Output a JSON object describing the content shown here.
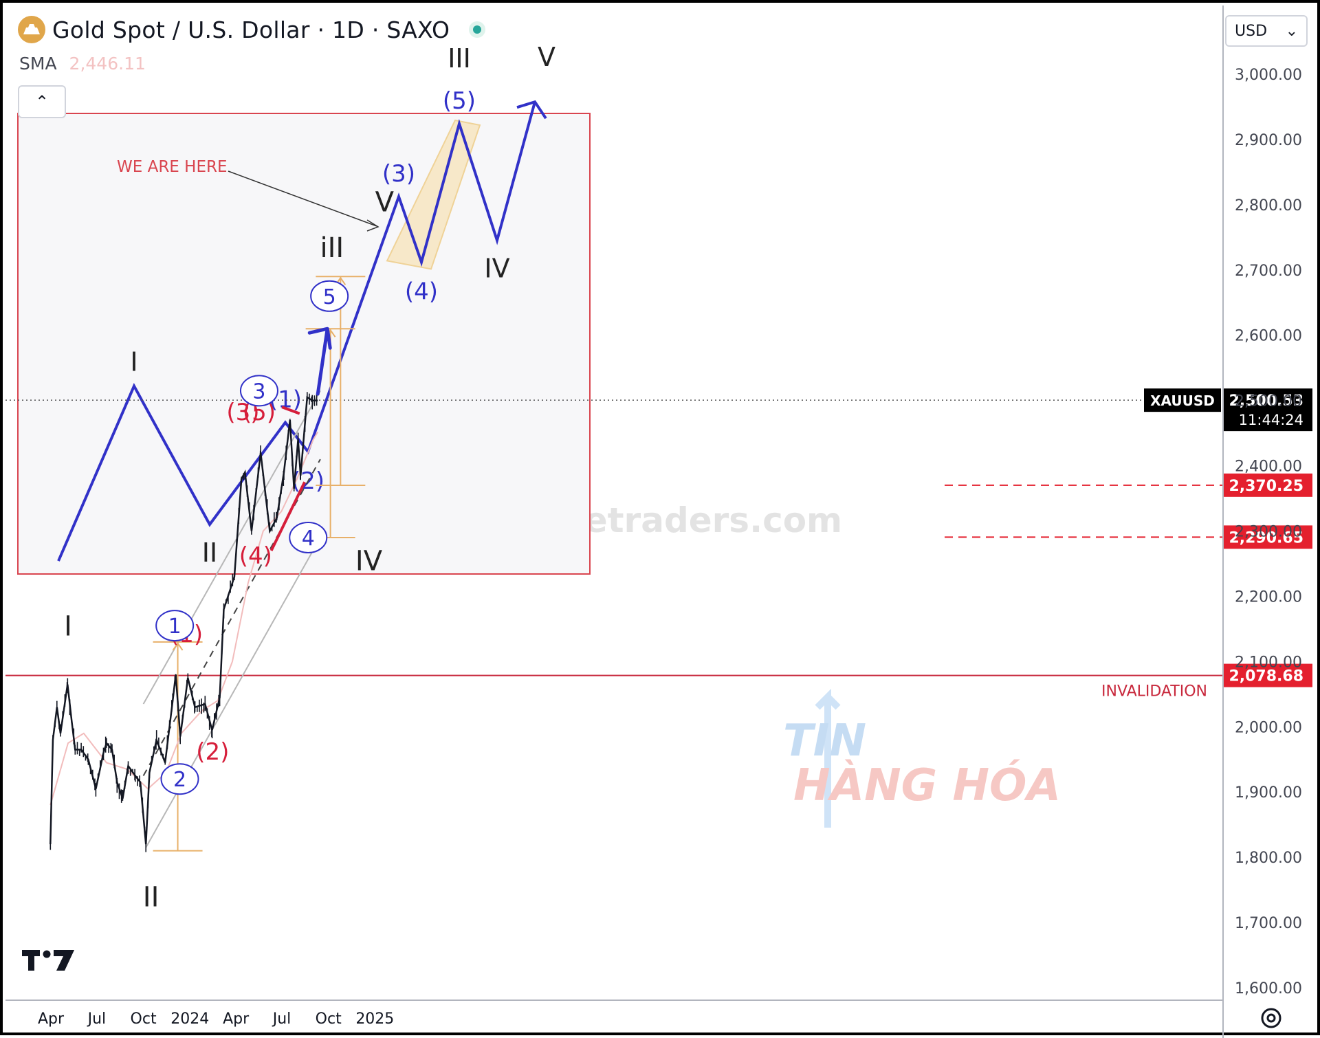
{
  "header": {
    "title": "Gold Spot / U.S. Dollar · 1D · SAXO",
    "indicator": {
      "name": "SMA",
      "value": "2,446.11"
    },
    "collapse_glyph": "⌃",
    "currency": "USD",
    "currency_caret": "⌄"
  },
  "icons": [
    "gold-logo-icon",
    "live-status-icon",
    "collapse-chevron-icon",
    "currency-dropdown-icon",
    "tradingview-logo-icon",
    "settings-gear-icon"
  ],
  "colors": {
    "price": "#131722",
    "sma": "#f2bcbc",
    "blue_wave": "#3131c8",
    "red_wave": "#d61e3a",
    "invalidation": "#c8283c",
    "target": "#e8b069",
    "price_tag_bg": "#000000",
    "level_tag_bg": "#e4202e"
  },
  "chart_data": {
    "type": "line",
    "symbol": "XAUUSD",
    "interval": "1D",
    "x_ticks": [
      "Apr",
      "Jul",
      "Oct",
      "2024",
      "Apr",
      "Jul",
      "Oct",
      "2025"
    ],
    "y_ticks": [
      "3,000.00",
      "2,900.00",
      "2,800.00",
      "2,700.00",
      "2,600.00",
      "2,500.00",
      "2,400.00",
      "2,300.00",
      "2,200.00",
      "2,100.00",
      "2,000.00",
      "1,900.00",
      "1,800.00",
      "1,700.00",
      "1,600.00"
    ],
    "ylim": [
      1600,
      3000
    ],
    "grid": false,
    "current_price": {
      "label": "XAUUSD",
      "value": "2,500.53",
      "countdown": "11:44:24"
    },
    "levels": [
      {
        "value": "2,370.25",
        "style": "dashed"
      },
      {
        "value": "2,290.65",
        "style": "dashed"
      },
      {
        "value": "2,078.68",
        "style": "solid",
        "label": "INVALIDATION"
      }
    ],
    "price_path": [
      [
        "2023-03-31",
        1820
      ],
      [
        "2023-04-05",
        1980
      ],
      [
        "2023-04-13",
        2030
      ],
      [
        "2023-04-20",
        1990
      ],
      [
        "2023-05-04",
        2065
      ],
      [
        "2023-05-12",
        2010
      ],
      [
        "2023-05-19",
        1965
      ],
      [
        "2023-05-31",
        1965
      ],
      [
        "2023-06-14",
        1950
      ],
      [
        "2023-06-29",
        1905
      ],
      [
        "2023-07-14",
        1960
      ],
      [
        "2023-07-20",
        1975
      ],
      [
        "2023-07-31",
        1965
      ],
      [
        "2023-08-10",
        1915
      ],
      [
        "2023-08-21",
        1890
      ],
      [
        "2023-09-01",
        1940
      ],
      [
        "2023-09-15",
        1925
      ],
      [
        "2023-09-25",
        1915
      ],
      [
        "2023-10-06",
        1820
      ],
      [
        "2023-10-13",
        1930
      ],
      [
        "2023-10-27",
        1980
      ],
      [
        "2023-11-13",
        1945
      ],
      [
        "2023-11-28",
        2040
      ],
      [
        "2023-12-04",
        2080
      ],
      [
        "2023-12-13",
        1985
      ],
      [
        "2023-12-28",
        2075
      ],
      [
        "2024-01-11",
        2030
      ],
      [
        "2024-01-31",
        2035
      ],
      [
        "2024-02-14",
        1995
      ],
      [
        "2024-02-29",
        2045
      ],
      [
        "2024-03-08",
        2180
      ],
      [
        "2024-03-29",
        2230
      ],
      [
        "2024-04-12",
        2380
      ],
      [
        "2024-04-19",
        2390
      ],
      [
        "2024-05-02",
        2300
      ],
      [
        "2024-05-20",
        2420
      ],
      [
        "2024-06-07",
        2300
      ],
      [
        "2024-06-21",
        2320
      ],
      [
        "2024-07-05",
        2390
      ],
      [
        "2024-07-17",
        2470
      ],
      [
        "2024-07-25",
        2365
      ],
      [
        "2024-08-02",
        2440
      ],
      [
        "2024-08-07",
        2385
      ],
      [
        "2024-08-20",
        2505
      ],
      [
        "2024-08-30",
        2500
      ],
      [
        "2024-09-10",
        2500
      ]
    ],
    "sma_path": [
      [
        "2023-03-31",
        1880
      ],
      [
        "2023-05-05",
        1975
      ],
      [
        "2023-06-05",
        1990
      ],
      [
        "2023-07-20",
        1945
      ],
      [
        "2023-08-30",
        1935
      ],
      [
        "2023-10-10",
        1905
      ],
      [
        "2023-11-15",
        1930
      ],
      [
        "2023-12-15",
        1990
      ],
      [
        "2024-01-25",
        2025
      ],
      [
        "2024-02-25",
        2040
      ],
      [
        "2024-03-25",
        2100
      ],
      [
        "2024-04-25",
        2220
      ],
      [
        "2024-05-25",
        2300
      ],
      [
        "2024-06-30",
        2330
      ],
      [
        "2024-07-31",
        2380
      ],
      [
        "2024-09-01",
        2440
      ],
      [
        "2024-09-10",
        2452
      ]
    ],
    "channel": {
      "upper": [
        [
          "2023-10-01",
          2035
        ],
        [
          "2024-09-15",
          2515
        ]
      ],
      "middle": [
        [
          "2023-10-01",
          1925
        ],
        [
          "2024-09-15",
          2410
        ]
      ],
      "lower": [
        [
          "2023-10-06",
          1815
        ],
        [
          "2024-09-15",
          2290
        ]
      ]
    },
    "red_triangle": {
      "top": [
        [
          "2024-07-01",
          2490
        ],
        [
          "2024-08-05",
          2480
        ]
      ],
      "bottom": [
        [
          "2024-06-10",
          2270
        ],
        [
          "2024-08-15",
          2375
        ]
      ]
    },
    "projection_arrow": [
      [
        "2024-09-10",
        2510
      ],
      [
        "2024-09-29",
        2610
      ]
    ],
    "target_ranges": [
      {
        "date": "2023-12-08",
        "low": 1810,
        "high": 2130
      },
      {
        "date": "2024-10-05",
        "low": 2290,
        "high": 2610
      },
      {
        "date": "2024-10-25",
        "low": 2370,
        "high": 2690
      }
    ],
    "wave_labels": {
      "black": [
        {
          "text": "I",
          "date": "2023-05-05",
          "price": 2140
        },
        {
          "text": "II",
          "date": "2023-10-16",
          "price": 1725
        },
        {
          "text": "iII",
          "date": "2024-10-08",
          "price": 2720
        },
        {
          "text": "IV",
          "date": "2024-12-20",
          "price": 2240
        },
        {
          "text": "V",
          "date": "2025-01-20",
          "price": 2790
        }
      ],
      "blue": [
        {
          "text": "1",
          "date": "2023-12-02",
          "price": 2155
        },
        {
          "text": "2",
          "date": "2023-12-12",
          "price": 1920
        },
        {
          "text": "3",
          "date": "2024-05-17",
          "price": 2515
        },
        {
          "text": "4",
          "date": "2024-08-22",
          "price": 2290
        },
        {
          "text": "5",
          "date": "2024-10-03",
          "price": 2660
        }
      ],
      "red": [
        {
          "text": "(1)",
          "date": "2023-12-25",
          "price": 2130
        },
        {
          "text": "(2)",
          "date": "2024-02-15",
          "price": 1950
        },
        {
          "text": "(3)",
          "date": "2024-04-15",
          "price": 2470
        },
        {
          "text": "(4)",
          "date": "2024-05-10",
          "price": 2250
        },
        {
          "text": "(5)",
          "date": "2024-05-17",
          "price": 2470
        }
      ]
    },
    "inset": {
      "annotation": "WE ARE HERE",
      "path": [
        [
          0,
          0
        ],
        [
          1,
          2.4
        ],
        [
          2,
          0.5
        ],
        [
          3,
          1.9
        ],
        [
          3.3,
          1.5
        ],
        [
          4.5,
          5
        ],
        [
          4.8,
          4.1
        ],
        [
          5.3,
          6
        ],
        [
          5.8,
          4.4
        ],
        [
          6.3,
          6.3
        ]
      ],
      "labels": [
        {
          "text": "I",
          "x": 1,
          "y": 2.4,
          "pos": "above",
          "color": "black"
        },
        {
          "text": "II",
          "x": 2,
          "y": 0.5,
          "pos": "below",
          "color": "black"
        },
        {
          "text": "(1)",
          "x": 3,
          "y": 1.9,
          "pos": "above",
          "color": "blue"
        },
        {
          "text": "(2)",
          "x": 3.3,
          "y": 1.5,
          "pos": "below",
          "color": "blue"
        },
        {
          "text": "(3)",
          "x": 4.5,
          "y": 5,
          "pos": "above",
          "color": "blue"
        },
        {
          "text": "(4)",
          "x": 4.8,
          "y": 4.1,
          "pos": "below",
          "color": "blue"
        },
        {
          "text": "(5)",
          "x": 5.3,
          "y": 6,
          "pos": "above",
          "color": "blue"
        },
        {
          "text": "III",
          "x": 5.3,
          "y": 6,
          "pos": "top",
          "color": "black"
        },
        {
          "text": "IV",
          "x": 5.8,
          "y": 4.4,
          "pos": "below",
          "color": "black"
        },
        {
          "text": "V",
          "x": 6.3,
          "y": 6.3,
          "pos": "top",
          "color": "black"
        }
      ]
    }
  },
  "watermarks": {
    "site": "www.wavetraders.com",
    "brand_top": "TIN",
    "brand_bottom": "HÀNG HÓA"
  }
}
